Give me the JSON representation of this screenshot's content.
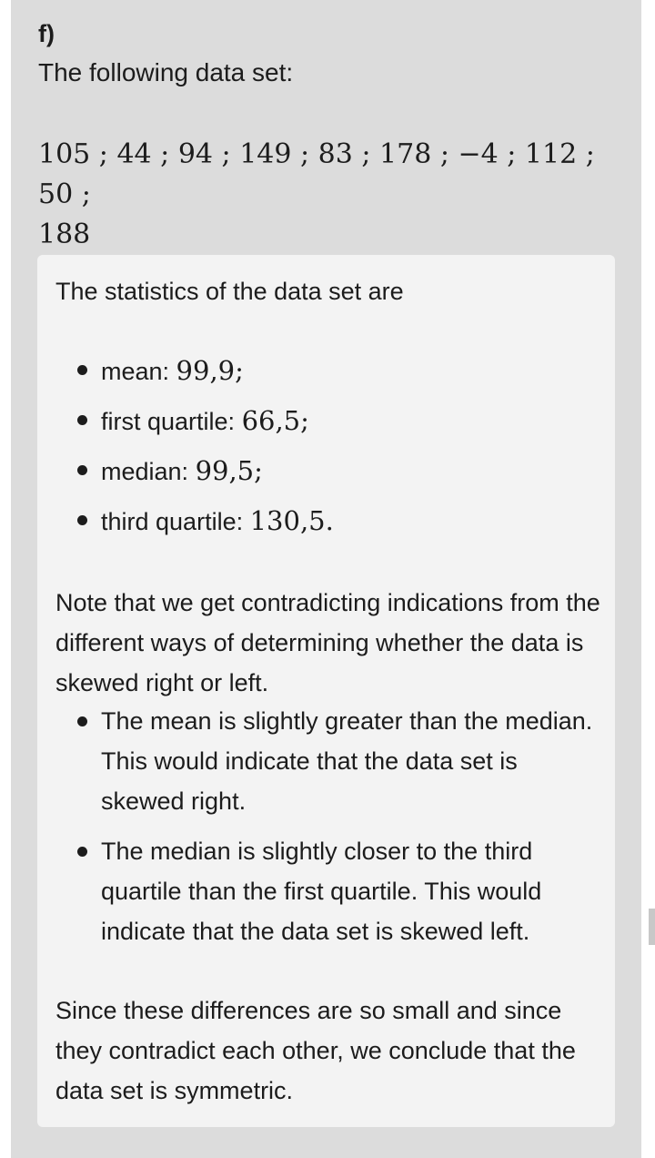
{
  "part_label": "f)",
  "intro": "The following data set:",
  "dataset": [
    "105",
    "44",
    "94",
    "149",
    "83",
    "178",
    "−4",
    "112",
    "50",
    "188"
  ],
  "solution": {
    "stats_intro": "The statistics of the data set are",
    "stats": [
      {
        "label": "mean: ",
        "value": "99,9",
        "end": ";"
      },
      {
        "label": "first quartile: ",
        "value": "66,5",
        "end": ";"
      },
      {
        "label": "median: ",
        "value": "99,5",
        "end": ";"
      },
      {
        "label": "third quartile: ",
        "value": "130,5",
        "end": "."
      }
    ],
    "note": "Note that we get contradicting indications from the different ways of determining whether the data is skewed right or left.",
    "reasons": [
      "The mean is slightly greater than the median. This would indicate that the data set is skewed right.",
      "The median is slightly closer to the third quartile than the first quartile. This would indicate that the data set is skewed left."
    ],
    "conclusion": "Since these differences are so small and since they contradict each other, we conclude that the data set is symmetric."
  }
}
